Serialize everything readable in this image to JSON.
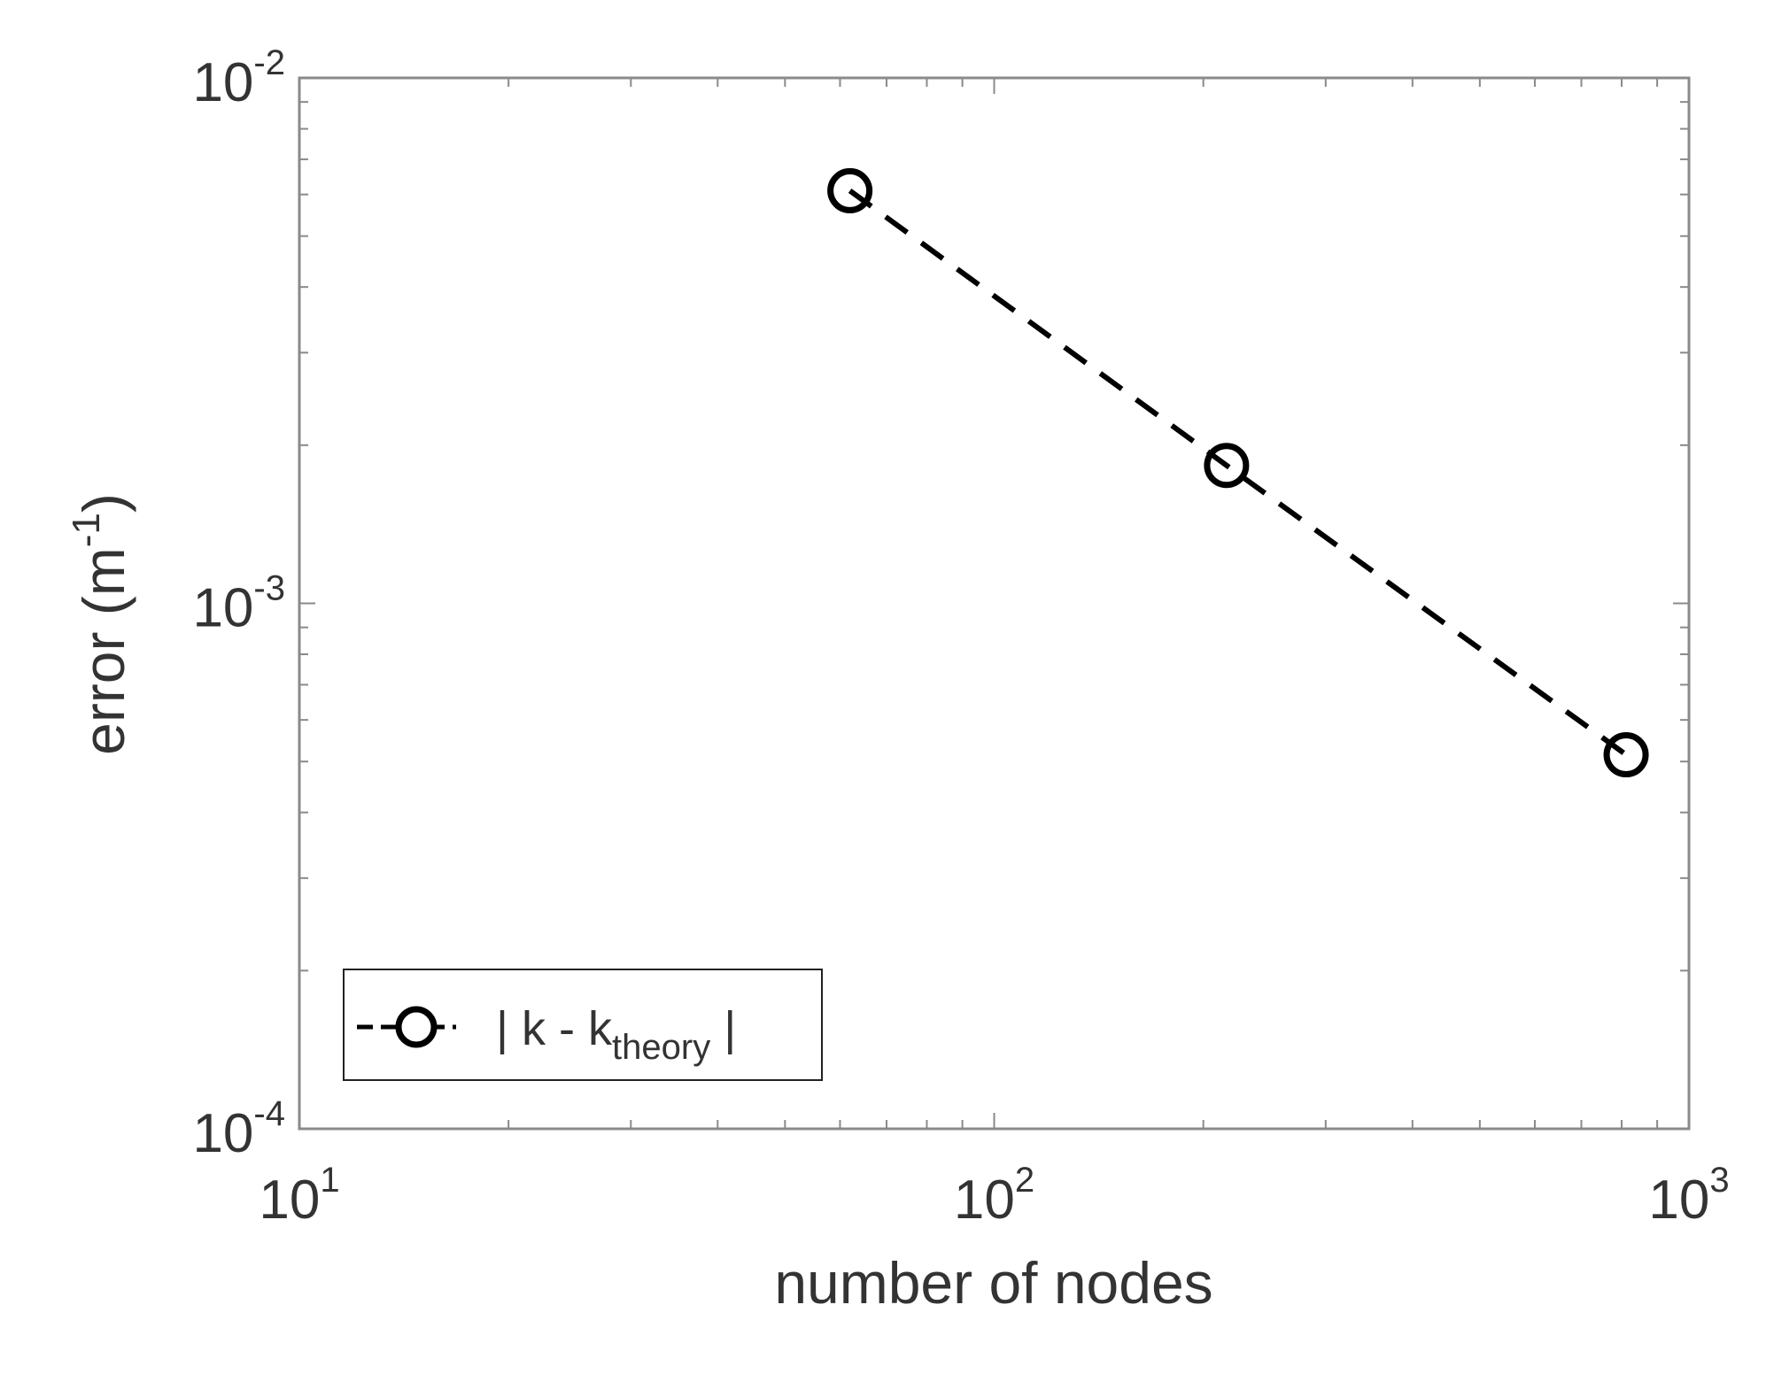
{
  "chart_data": {
    "type": "line",
    "title": "",
    "xlabel": "number of nodes",
    "ylabel_main": "error (m",
    "ylabel_sup": "-1",
    "ylabel_close": ")",
    "xscale": "log",
    "yscale": "log",
    "xlim": [
      10,
      1000
    ],
    "ylim": [
      0.0001,
      0.01
    ],
    "grid": false,
    "legend_position": "bottom-left",
    "x_ticks": [
      {
        "base": "10",
        "exp": "1",
        "value": 10
      },
      {
        "base": "10",
        "exp": "2",
        "value": 100
      },
      {
        "base": "10",
        "exp": "3",
        "value": 1000
      }
    ],
    "y_ticks": [
      {
        "base": "10",
        "exp": "-4",
        "value": 0.0001
      },
      {
        "base": "10",
        "exp": "-3",
        "value": 0.001
      },
      {
        "base": "10",
        "exp": "-2",
        "value": 0.01
      }
    ],
    "series": [
      {
        "legend_pre": "| k - k",
        "legend_sub": "theory",
        "legend_post": " |",
        "line_style": "dashed",
        "marker": "circle",
        "color": "#000000",
        "x": [
          62,
          216,
          812
        ],
        "y": [
          0.0061,
          0.00183,
          0.000515
        ]
      }
    ]
  }
}
